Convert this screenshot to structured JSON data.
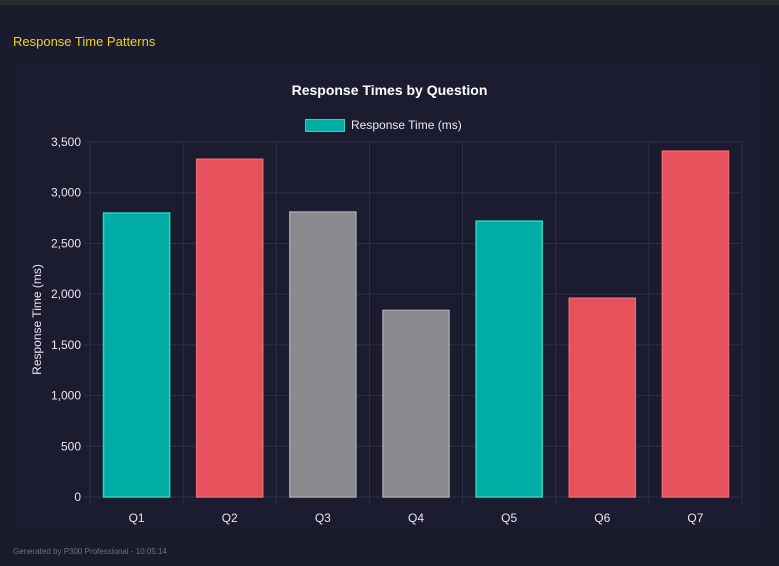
{
  "section_title": "Response Time Patterns",
  "footer": "Generated by P300 Professional - 10:05:14",
  "colors": {
    "teal": "#00ada5",
    "red": "#e5525c",
    "gray": "#8a898d",
    "title": "#f5d020"
  },
  "chart_data": {
    "type": "bar",
    "title": "Response Times by Question",
    "legend": {
      "label": "Response Time (ms)",
      "position": "top"
    },
    "xlabel": "",
    "ylabel": "Response Time (ms)",
    "ylim": [
      0,
      3500
    ],
    "yticks": [
      "0",
      "500",
      "1,000",
      "1,500",
      "2,000",
      "2,500",
      "3,000",
      "3,500"
    ],
    "grid": true,
    "categories": [
      "Q1",
      "Q2",
      "Q3",
      "Q4",
      "Q5",
      "Q6",
      "Q7"
    ],
    "values": [
      2800,
      3330,
      2810,
      1840,
      2720,
      1960,
      3410
    ],
    "bar_colors": [
      "#00ada5",
      "#e5525c",
      "#8a898d",
      "#8a898d",
      "#00ada5",
      "#e5525c",
      "#e5525c"
    ]
  }
}
